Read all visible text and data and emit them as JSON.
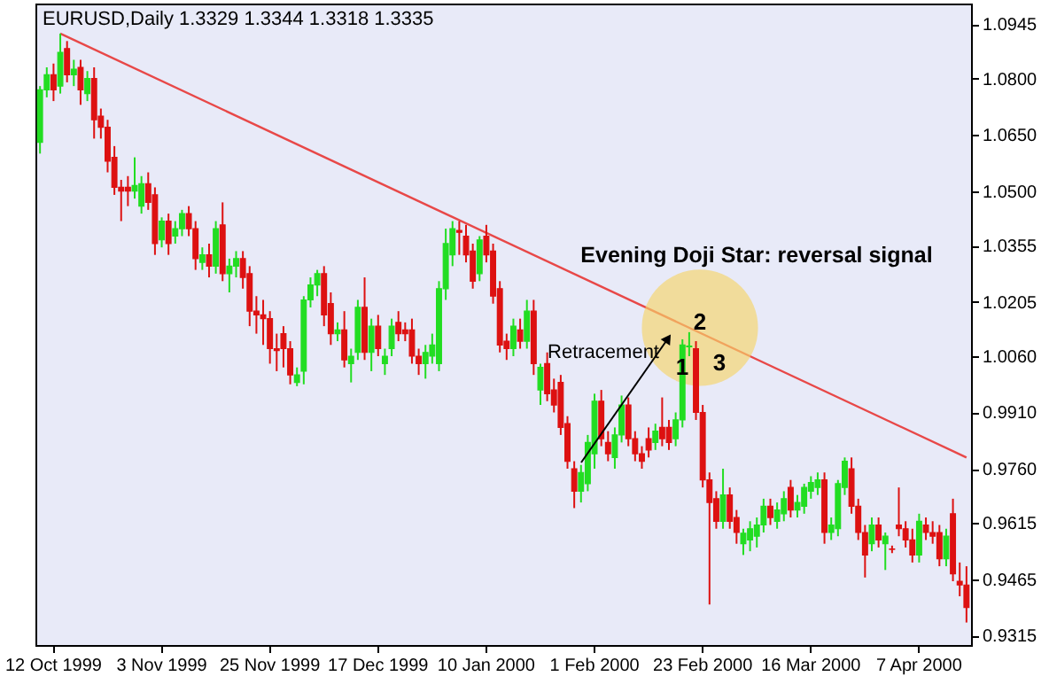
{
  "chart_data": {
    "type": "candlestick",
    "title": "EURUSD,Daily  1.3329 1.3344 1.3318 1.3335",
    "categories": [
      null,
      null,
      "12 Oct 1999",
      null,
      null,
      null,
      null,
      null,
      null,
      null,
      null,
      null,
      null,
      null,
      null,
      null,
      null,
      null,
      "3 Nov 1999",
      null,
      null,
      null,
      null,
      null,
      null,
      null,
      null,
      null,
      null,
      null,
      null,
      null,
      null,
      null,
      "25 Nov 1999",
      null,
      null,
      null,
      null,
      null,
      null,
      null,
      null,
      null,
      null,
      null,
      null,
      null,
      null,
      null,
      "17 Dec 1999",
      null,
      null,
      null,
      null,
      null,
      null,
      null,
      null,
      null,
      null,
      null,
      null,
      null,
      null,
      null,
      "10 Jan 2000",
      null,
      null,
      null,
      null,
      null,
      null,
      null,
      null,
      null,
      null,
      null,
      null,
      null,
      null,
      null,
      "1 Feb 2000",
      null,
      null,
      null,
      null,
      null,
      null,
      null,
      null,
      null,
      null,
      null,
      null,
      null,
      null,
      null,
      "23 Feb 2000",
      null,
      null,
      null,
      null,
      null,
      null,
      null,
      null,
      null,
      null,
      null,
      null,
      null,
      null,
      null,
      "16 Mar 2000",
      null,
      null,
      null,
      null,
      null,
      null,
      null,
      null,
      null,
      null,
      null,
      null,
      null,
      null,
      null,
      "7 Apr 2000",
      null,
      null,
      null,
      null,
      null,
      null,
      null
    ],
    "ohlc": [
      [
        1.063,
        1.078,
        1.06,
        1.077
      ],
      [
        1.077,
        1.083,
        1.075,
        1.081
      ],
      [
        1.081,
        1.084,
        1.074,
        1.077
      ],
      [
        1.078,
        1.092,
        1.076,
        1.087
      ],
      [
        1.088,
        1.09,
        1.079,
        1.081
      ],
      [
        1.081,
        1.085,
        1.078,
        1.0825
      ],
      [
        1.083,
        1.085,
        1.073,
        1.077
      ],
      [
        1.076,
        1.082,
        1.074,
        1.08
      ],
      [
        1.08,
        1.083,
        1.064,
        1.069
      ],
      [
        1.07,
        1.072,
        1.064,
        1.067
      ],
      [
        1.067,
        1.069,
        1.055,
        1.058
      ],
      [
        1.059,
        1.062,
        1.049,
        1.051
      ],
      [
        1.051,
        1.053,
        1.042,
        1.05
      ],
      [
        1.051,
        1.054,
        1.046,
        1.05
      ],
      [
        1.05,
        1.059,
        1.048,
        1.0515
      ],
      [
        1.046,
        1.054,
        1.044,
        1.052
      ],
      [
        1.052,
        1.055,
        1.045,
        1.047
      ],
      [
        1.049,
        1.051,
        1.033,
        1.036
      ],
      [
        1.037,
        1.043,
        1.035,
        1.042
      ],
      [
        1.042,
        1.044,
        1.033,
        1.036
      ],
      [
        1.038,
        1.042,
        1.036,
        1.04
      ],
      [
        1.04,
        1.045,
        1.038,
        1.044
      ],
      [
        1.044,
        1.046,
        1.038,
        1.04
      ],
      [
        1.04,
        1.042,
        1.029,
        1.032
      ],
      [
        1.031,
        1.035,
        1.029,
        1.033
      ],
      [
        1.033,
        1.036,
        1.027,
        1.03
      ],
      [
        1.03,
        1.042,
        1.028,
        1.04
      ],
      [
        1.041,
        1.047,
        1.026,
        1.028
      ],
      [
        1.028,
        1.032,
        1.023,
        1.03
      ],
      [
        1.03,
        1.034,
        1.027,
        1.032
      ],
      [
        1.032,
        1.034,
        1.024,
        1.027
      ],
      [
        1.028,
        1.03,
        1.014,
        1.018
      ],
      [
        1.018,
        1.022,
        1.012,
        1.017
      ],
      [
        1.017,
        1.021,
        1.009,
        1.016
      ],
      [
        1.016,
        1.018,
        1.004,
        1.008
      ],
      [
        1.008,
        1.012,
        1.002,
        1.0075
      ],
      [
        1.012,
        1.014,
        1.003,
        1.008
      ],
      [
        1.008,
        1.01,
        0.9985,
        1.001
      ],
      [
        0.999,
        1.003,
        0.998,
        1.001
      ],
      [
        1.002,
        1.022,
        0.9985,
        1.021
      ],
      [
        1.021,
        1.027,
        1.019,
        1.025
      ],
      [
        1.025,
        1.029,
        1.022,
        1.028
      ],
      [
        1.028,
        1.03,
        1.014,
        1.017
      ],
      [
        1.02,
        1.023,
        1.009,
        1.012
      ],
      [
        1.012,
        1.015,
        1.01,
        1.013
      ],
      [
        1.013,
        1.018,
        1.003,
        1.005
      ],
      [
        1.004,
        1.008,
        0.999,
        1.006
      ],
      [
        1.007,
        1.021,
        1.005,
        1.019
      ],
      [
        1.019,
        1.027,
        1.005,
        1.007
      ],
      [
        1.007,
        1.016,
        1.002,
        1.014
      ],
      [
        1.014,
        1.017,
        1.006,
        1.008
      ],
      [
        1.004,
        1.008,
        1.001,
        1.006
      ],
      [
        1.008,
        1.016,
        1.006,
        1.014
      ],
      [
        1.015,
        1.018,
        1.01,
        1.012
      ],
      [
        1.013,
        1.015,
        1.01,
        1.012
      ],
      [
        1.013,
        1.016,
        1.004,
        1.006
      ],
      [
        1.006,
        1.008,
        1.001,
        1.004
      ],
      [
        1.004,
        1.009,
        1.0,
        1.007
      ],
      [
        1.006,
        1.012,
        1.004,
        1.009
      ],
      [
        1.004,
        1.026,
        1.002,
        1.024
      ],
      [
        1.024,
        1.04,
        1.021,
        1.036
      ],
      [
        1.033,
        1.042,
        1.03,
        1.04
      ],
      [
        1.0395,
        1.042,
        1.033,
        1.039
      ],
      [
        1.038,
        1.041,
        1.031,
        1.033
      ],
      [
        1.034,
        1.036,
        1.024,
        1.026
      ],
      [
        1.028,
        1.038,
        1.026,
        1.037
      ],
      [
        1.038,
        1.041,
        1.031,
        1.033
      ],
      [
        1.034,
        1.036,
        1.02,
        1.022
      ],
      [
        1.024,
        1.026,
        1.007,
        1.009
      ],
      [
        1.01,
        1.012,
        1.005,
        1.008
      ],
      [
        1.008,
        1.016,
        1.006,
        1.014
      ],
      [
        1.013,
        1.016,
        1.008,
        1.01
      ],
      [
        1.01,
        1.021,
        1.008,
        1.018
      ],
      [
        1.018,
        1.021,
        1.001,
        1.004
      ],
      [
        0.997,
        1.004,
        0.993,
        1.003
      ],
      [
        1.004,
        1.007,
        0.994,
        0.996
      ],
      [
        0.997,
        1.0,
        0.991,
        0.993
      ],
      [
        0.999,
        1.001,
        0.985,
        0.987
      ],
      [
        0.988,
        0.99,
        0.976,
        0.978
      ],
      [
        0.976,
        0.978,
        0.9655,
        0.97
      ],
      [
        0.97,
        0.977,
        0.967,
        0.975
      ],
      [
        0.972,
        0.985,
        0.97,
        0.983
      ],
      [
        0.98,
        0.996,
        0.976,
        0.994
      ],
      [
        0.994,
        0.997,
        0.982,
        0.984
      ],
      [
        0.983,
        0.986,
        0.978,
        0.98
      ],
      [
        0.979,
        0.987,
        0.976,
        0.985
      ],
      [
        0.985,
        0.9955,
        0.983,
        0.993
      ],
      [
        0.993,
        0.995,
        0.982,
        0.984
      ],
      [
        0.984,
        0.986,
        0.978,
        0.98
      ],
      [
        0.98,
        0.982,
        0.976,
        0.978
      ],
      [
        0.984,
        0.987,
        0.979,
        0.981
      ],
      [
        0.983,
        0.988,
        0.981,
        0.986
      ],
      [
        0.987,
        0.995,
        0.982,
        0.984
      ],
      [
        0.987,
        0.989,
        0.981,
        0.983
      ],
      [
        0.984,
        0.991,
        0.982,
        0.989
      ],
      [
        0.989,
        1.0105,
        0.987,
        1.009
      ],
      [
        1.0085,
        1.0124,
        1.006,
        1.0087
      ],
      [
        1.008,
        1.01,
        0.989,
        0.991
      ],
      [
        0.991,
        0.993,
        0.971,
        0.973
      ],
      [
        0.973,
        0.975,
        0.9398,
        0.967
      ],
      [
        0.968,
        0.97,
        0.96,
        0.962
      ],
      [
        0.962,
        0.976,
        0.96,
        0.969
      ],
      [
        0.969,
        0.971,
        0.96,
        0.962
      ],
      [
        0.963,
        0.965,
        0.956,
        0.959
      ],
      [
        0.956,
        0.96,
        0.953,
        0.9588
      ],
      [
        0.957,
        0.962,
        0.954,
        0.96
      ],
      [
        0.958,
        0.963,
        0.955,
        0.961
      ],
      [
        0.961,
        0.968,
        0.959,
        0.966
      ],
      [
        0.966,
        0.968,
        0.961,
        0.963
      ],
      [
        0.962,
        0.967,
        0.96,
        0.965
      ],
      [
        0.964,
        0.97,
        0.962,
        0.968
      ],
      [
        0.971,
        0.973,
        0.963,
        0.965
      ],
      [
        0.965,
        0.969,
        0.963,
        0.967
      ],
      [
        0.966,
        0.972,
        0.964,
        0.971
      ],
      [
        0.97,
        0.974,
        0.968,
        0.9723
      ],
      [
        0.971,
        0.975,
        0.969,
        0.973
      ],
      [
        0.973,
        0.975,
        0.956,
        0.959
      ],
      [
        0.959,
        0.963,
        0.957,
        0.961
      ],
      [
        0.96,
        0.973,
        0.958,
        0.972
      ],
      [
        0.971,
        0.979,
        0.969,
        0.978
      ],
      [
        0.976,
        0.979,
        0.964,
        0.966
      ],
      [
        0.966,
        0.968,
        0.957,
        0.959
      ],
      [
        0.959,
        0.961,
        0.947,
        0.953
      ],
      [
        0.956,
        0.963,
        0.954,
        0.961
      ],
      [
        0.961,
        0.963,
        0.955,
        0.957
      ],
      [
        0.956,
        0.959,
        0.949,
        0.958
      ],
      [
        0.9546,
        0.9555,
        0.9535,
        0.9545
      ],
      [
        0.961,
        0.971,
        0.958,
        0.96
      ],
      [
        0.96,
        0.962,
        0.955,
        0.957
      ],
      [
        0.957,
        0.96,
        0.951,
        0.953
      ],
      [
        0.953,
        0.964,
        0.951,
        0.962
      ],
      [
        0.961,
        0.963,
        0.957,
        0.959
      ],
      [
        0.959,
        0.962,
        0.956,
        0.958
      ],
      [
        0.959,
        0.961,
        0.95,
        0.952
      ],
      [
        0.952,
        0.96,
        0.95,
        0.958
      ],
      [
        0.964,
        0.968,
        0.946,
        0.948
      ],
      [
        0.946,
        0.951,
        0.942,
        0.945
      ],
      [
        0.945,
        0.95,
        0.935,
        0.939
      ]
    ],
    "series": [
      {
        "type": "line",
        "color": "#e84848",
        "values": [
          null,
          null,
          null,
          1.092,
          null,
          null,
          null,
          null,
          null,
          null,
          null,
          null,
          null,
          null,
          null,
          null,
          null,
          null,
          null,
          null,
          null,
          null,
          null,
          null,
          null,
          null,
          null,
          null,
          null,
          null,
          null,
          null,
          null,
          null,
          null,
          null,
          null,
          null,
          null,
          null,
          null,
          null,
          null,
          null,
          null,
          null,
          null,
          null,
          null,
          null,
          null,
          null,
          null,
          null,
          null,
          null,
          null,
          null,
          null,
          null,
          null,
          null,
          null,
          null,
          null,
          null,
          null,
          null,
          null,
          null,
          null,
          null,
          null,
          null,
          null,
          null,
          null,
          null,
          null,
          null,
          null,
          null,
          null,
          null,
          null,
          null,
          null,
          null,
          null,
          null,
          null,
          null,
          null,
          null,
          null,
          null,
          null,
          null,
          null,
          null,
          null,
          null,
          null,
          null,
          null,
          null,
          null,
          null,
          null,
          null,
          null,
          null,
          null,
          null,
          null,
          null,
          null,
          null,
          null,
          null,
          null,
          null,
          null,
          null,
          null,
          null,
          null,
          null,
          null,
          null,
          null,
          null,
          null,
          null,
          null,
          null,
          null,
          0.979
        ]
      }
    ],
    "ylim": [
      0.929,
      1.1
    ],
    "yticks": [
      0.9315,
      0.9465,
      0.9615,
      {
        "value": 0.976,
        "label": "0.9760"
      },
      {
        "value": 0.991,
        "label": "0.9910"
      },
      {
        "value": 1.006,
        "label": "1.0060"
      },
      1.0205,
      1.0355,
      {
        "value": 1.05,
        "label": "1.0500"
      },
      {
        "value": 1.065,
        "label": "1.0650"
      },
      {
        "value": 1.08,
        "label": "1.0800"
      },
      1.0945
    ],
    "grid": false,
    "annotations": [
      "Evening Doji Star: reversal signal",
      "Retracement",
      {
        "text": "1",
        "y": 1.003
      },
      {
        "text": "2",
        "y": 1.015
      },
      "3"
    ]
  }
}
